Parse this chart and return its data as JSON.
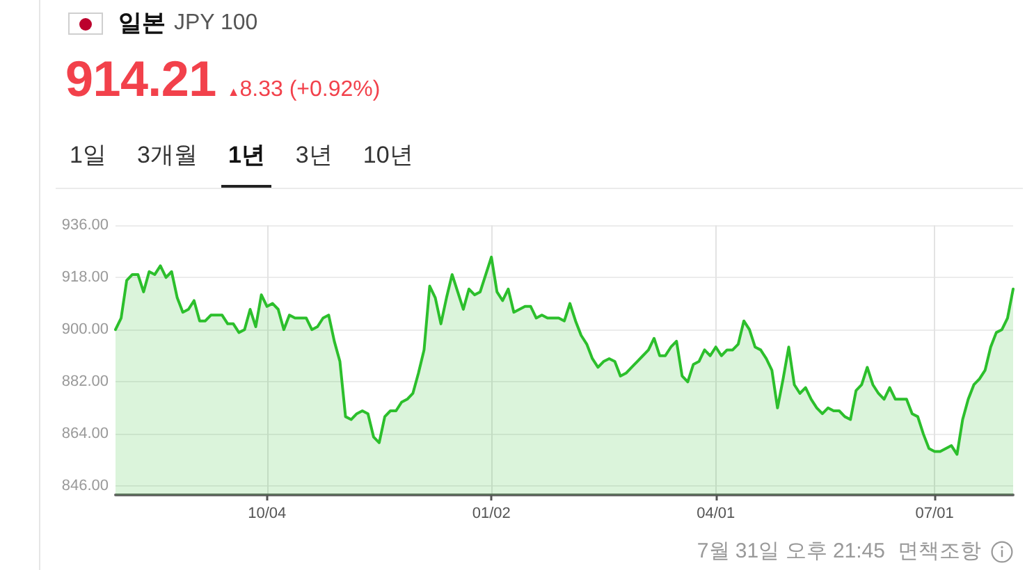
{
  "chart_data": {
    "type": "area",
    "title": "일본",
    "subtitle": "JPY 100",
    "annotations": [
      "914.21",
      "▲8.33 (+0.92%)",
      "1일",
      "3개월",
      "1년",
      "3년",
      "10년",
      "7월 31일 오후 21:45",
      "면책조항"
    ],
    "categories": [
      null,
      null,
      null,
      null,
      null,
      null,
      null,
      null,
      null,
      null,
      null,
      null,
      null,
      null,
      null,
      null,
      null,
      null,
      null,
      null,
      null,
      null,
      null,
      null,
      null,
      null,
      null,
      "10/04",
      null,
      null,
      null,
      null,
      null,
      null,
      null,
      null,
      null,
      null,
      null,
      null,
      null,
      null,
      null,
      null,
      null,
      null,
      null,
      null,
      null,
      null,
      null,
      null,
      null,
      null,
      null,
      null,
      null,
      null,
      null,
      null,
      null,
      null,
      null,
      null,
      null,
      null,
      null,
      "01/02",
      null,
      null,
      null,
      null,
      null,
      null,
      null,
      null,
      null,
      null,
      null,
      null,
      null,
      null,
      null,
      null,
      null,
      null,
      null,
      null,
      null,
      null,
      null,
      null,
      null,
      null,
      null,
      null,
      null,
      null,
      null,
      null,
      null,
      null,
      null,
      null,
      null,
      null,
      null,
      "04/01",
      null,
      null,
      null,
      null,
      null,
      null,
      null,
      null,
      null,
      null,
      null,
      null,
      null,
      null,
      null,
      null,
      null,
      null,
      null,
      null,
      null,
      null,
      null,
      null,
      null,
      null,
      null,
      null,
      null,
      null,
      null,
      null,
      null,
      null,
      null,
      null,
      null,
      null,
      "07/01",
      null,
      null,
      null,
      null,
      null,
      null,
      null,
      null,
      null,
      null,
      null,
      null,
      null,
      null
    ],
    "series": [
      {
        "color": "#2cbf2c",
        "values": [
          900,
          904,
          917,
          919,
          919,
          913,
          920,
          919,
          922,
          918,
          920,
          911,
          906,
          907,
          910,
          903,
          903,
          905,
          905,
          905,
          902,
          902,
          899,
          900,
          907,
          901,
          912,
          908,
          909,
          907,
          900,
          905,
          904,
          904,
          904,
          900,
          901,
          904,
          905,
          896,
          889,
          870,
          869,
          871,
          872,
          871,
          863,
          861,
          870,
          872,
          872,
          875,
          876,
          878,
          885,
          893,
          915,
          911,
          902,
          911,
          919,
          913,
          907,
          914,
          912,
          913,
          919,
          925,
          913,
          910,
          914,
          906,
          907,
          908,
          908,
          904,
          905,
          904,
          904,
          904,
          903,
          909,
          903,
          898,
          895,
          890,
          887,
          889,
          890,
          889,
          884,
          885,
          887,
          889,
          891,
          893,
          897,
          891,
          891,
          894,
          896,
          884,
          882,
          888,
          889,
          893,
          891,
          894,
          891,
          893,
          893,
          895,
          903,
          900,
          894,
          893,
          890,
          886,
          873,
          883,
          894,
          881,
          878,
          880,
          876,
          873,
          871,
          873,
          872,
          872,
          870,
          869,
          879,
          881,
          887,
          881,
          878,
          876,
          880,
          876,
          876,
          876,
          871,
          870,
          864,
          859,
          858,
          858,
          859,
          860,
          857,
          869,
          876,
          881,
          883,
          886,
          894,
          899,
          900,
          904,
          914
        ]
      }
    ],
    "ylim": [
      843,
      936
    ],
    "yticks": [
      {
        "value": 846,
        "label": "846.00"
      },
      {
        "value": 864,
        "label": "864.00"
      },
      {
        "value": 882,
        "label": "882.00"
      },
      {
        "value": 900,
        "label": "900.00"
      },
      {
        "value": 918,
        "label": "918.00"
      },
      {
        "value": 936,
        "label": "936.00"
      }
    ],
    "grid": true,
    "marker": "none"
  }
}
